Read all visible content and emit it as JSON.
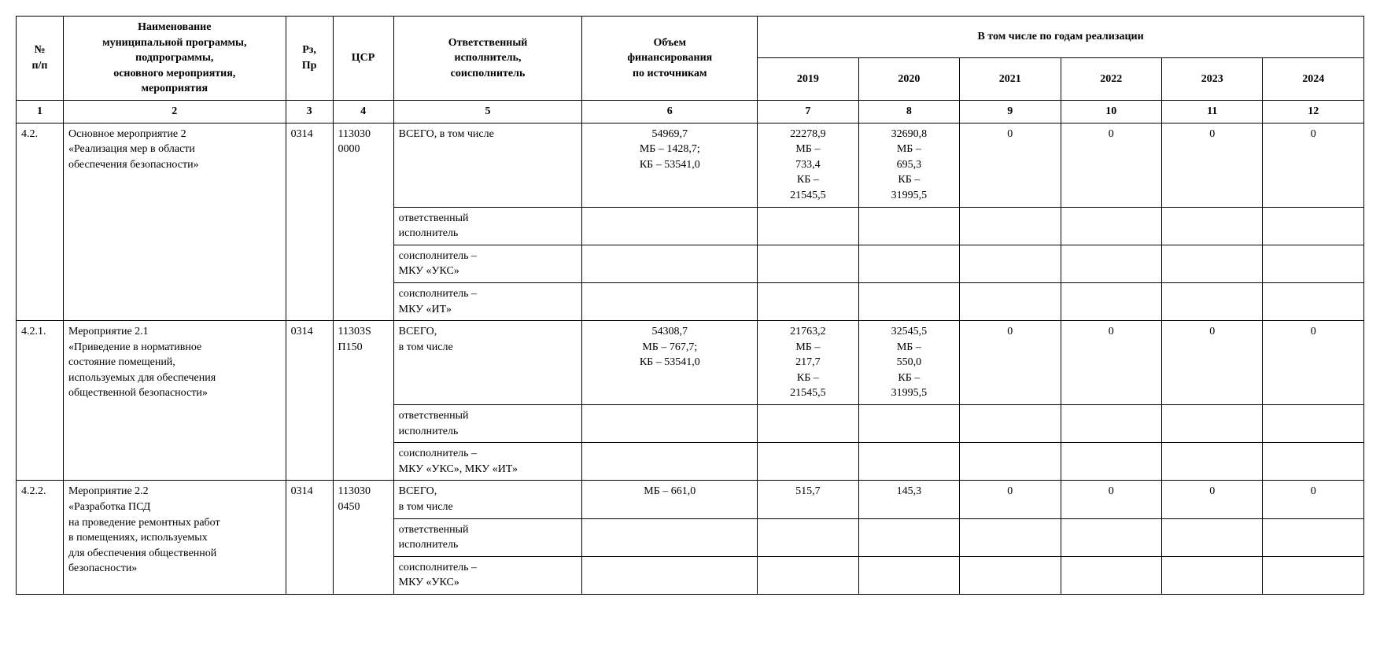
{
  "table": {
    "header": {
      "num": "№\nп/п",
      "name": "Наименование\nмуниципальной программы,\nподпрограммы,\nосновного мероприятия,\nмероприятия",
      "rz": "Рз,\nПр",
      "csr": "ЦСР",
      "resp": "Ответственный\nисполнитель,\nсоисполнитель",
      "vol": "Объем\nфинансирования\nпо источникам",
      "years_group": "В том числе по годам реализации",
      "years": [
        "2019",
        "2020",
        "2021",
        "2022",
        "2023",
        "2024"
      ]
    },
    "colnums": [
      "1",
      "2",
      "3",
      "4",
      "5",
      "6",
      "7",
      "8",
      "9",
      "10",
      "11",
      "12"
    ],
    "sections": [
      {
        "num": "4.2.",
        "name": "Основное мероприятие 2\n«Реализация мер в области\nобеспечения безопасности»",
        "rz": "0314",
        "csr": "113030\n0000",
        "rows": [
          {
            "resp": "ВСЕГО, в том числе",
            "vol": "54969,7\nМБ – 1428,7;\nКБ – 53541,0",
            "y": [
              "22278,9\nМБ –\n733,4\nКБ –\n21545,5",
              "32690,8\nМБ –\n695,3\nКБ –\n31995,5",
              "0",
              "0",
              "0",
              "0"
            ]
          },
          {
            "resp": "ответственный\nисполнитель",
            "vol": "",
            "y": [
              "",
              "",
              "",
              "",
              "",
              ""
            ]
          },
          {
            "resp": "соисполнитель –\nМКУ «УКС»",
            "vol": "",
            "y": [
              "",
              "",
              "",
              "",
              "",
              ""
            ]
          },
          {
            "resp": "соисполнитель –\nМКУ «ИТ»",
            "vol": "",
            "y": [
              "",
              "",
              "",
              "",
              "",
              ""
            ]
          }
        ]
      },
      {
        "num": "4.2.1.",
        "name": "Мероприятие 2.1\n«Приведение в нормативное\nсостояние помещений,\nиспользуемых для обеспечения\nобщественной безопасности»",
        "rz": "0314",
        "csr": "11303S\nП150",
        "rows": [
          {
            "resp": "ВСЕГО,\nв том числе",
            "vol": "54308,7\nМБ – 767,7;\nКБ – 53541,0",
            "y": [
              "21763,2\nМБ –\n217,7\nКБ –\n21545,5",
              "32545,5\nМБ –\n550,0\nКБ –\n31995,5",
              "0",
              "0",
              "0",
              "0"
            ]
          },
          {
            "resp": "ответственный\nисполнитель",
            "vol": "",
            "y": [
              "",
              "",
              "",
              "",
              "",
              ""
            ]
          },
          {
            "resp": "соисполнитель –\nМКУ «УКС», МКУ «ИТ»",
            "vol": "",
            "y": [
              "",
              "",
              "",
              "",
              "",
              ""
            ]
          }
        ]
      },
      {
        "num": "4.2.2.",
        "name": "Мероприятие 2.2\n«Разработка ПСД\nна проведение ремонтных работ\nв помещениях, используемых\nдля обеспечения общественной\nбезопасности»",
        "rz": "0314",
        "csr": "113030\n0450",
        "rows": [
          {
            "resp": "ВСЕГО,\nв том числе",
            "vol": "МБ – 661,0",
            "y": [
              "515,7",
              "145,3",
              "0",
              "0",
              "0",
              "0"
            ]
          },
          {
            "resp": "ответственный\nисполнитель",
            "vol": "",
            "y": [
              "",
              "",
              "",
              "",
              "",
              ""
            ]
          },
          {
            "resp": "соисполнитель –\nМКУ «УКС»",
            "vol": "",
            "y": [
              "",
              "",
              "",
              "",
              "",
              ""
            ]
          }
        ]
      }
    ]
  },
  "style": {
    "font_family": "Times New Roman",
    "font_size_pt": 11,
    "border_color": "#000000",
    "background_color": "#ffffff",
    "text_color": "#000000"
  }
}
